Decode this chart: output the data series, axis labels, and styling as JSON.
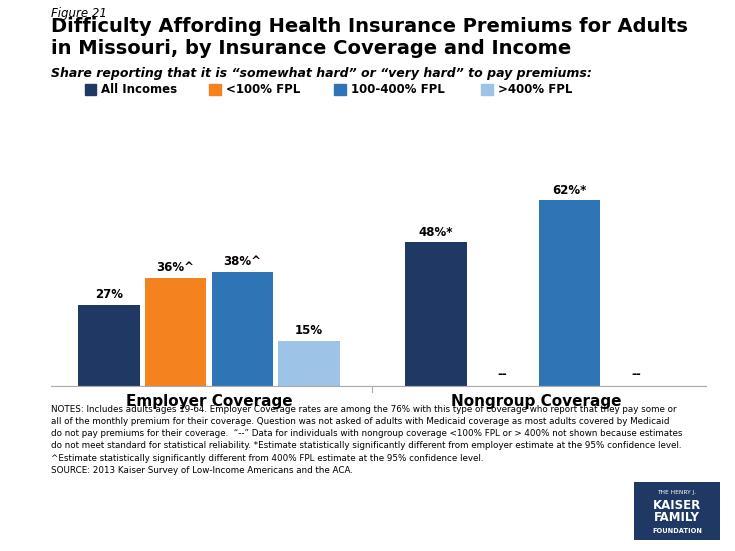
{
  "figure_label": "Figure 21",
  "title_line1": "Difficulty Affording Health Insurance Premiums for Adults",
  "title_line2": "in Missouri, by Insurance Coverage and Income",
  "subtitle": "Share reporting that it is “somewhat hard” or “very hard” to pay premiums:",
  "legend_labels": [
    "All Incomes",
    "<100% FPL",
    "100-400% FPL",
    ">400% FPL"
  ],
  "legend_colors": [
    "#1F3864",
    "#F4821E",
    "#2E75B6",
    "#9DC3E6"
  ],
  "groups": [
    "Employer Coverage",
    "Nongroup Coverage"
  ],
  "employer_vals": [
    27,
    36,
    38,
    15
  ],
  "nongroup_vals": [
    48,
    null,
    62,
    null
  ],
  "employer_labels": [
    "27%",
    "36%^",
    "38%^",
    "15%"
  ],
  "nongroup_labels": [
    "48%*",
    "--",
    "62%*",
    "--"
  ],
  "bar_colors": [
    "#1F3864",
    "#F4821E",
    "#2E75B6",
    "#9DC3E6"
  ],
  "notes_line1": "NOTES: Includes adults ages 19-64. Employer Coverage rates are among the 76% with this type of coverage who report that they pay some or",
  "notes_line2": "all of the monthly premium for their coverage. Question was not asked of adults with Medicaid coverage as most adults covered by Medicaid",
  "notes_line3": "do not pay premiums for their coverage.  “--” Data for individuals with nongroup coverage <100% FPL or > 400% not shown because estimates",
  "notes_line4": "do not meet standard for statistical reliability. *Estimate statistically significantly different from employer estimate at the 95% confidence level.",
  "notes_line5": "^Estimate statistically significantly different from 400% FPL estimate at the 95% confidence level.",
  "notes_line6": "SOURCE: 2013 Kaiser Survey of Low-Income Americans and the ACA.",
  "ylim": [
    0,
    70
  ],
  "background_color": "#FFFFFF"
}
